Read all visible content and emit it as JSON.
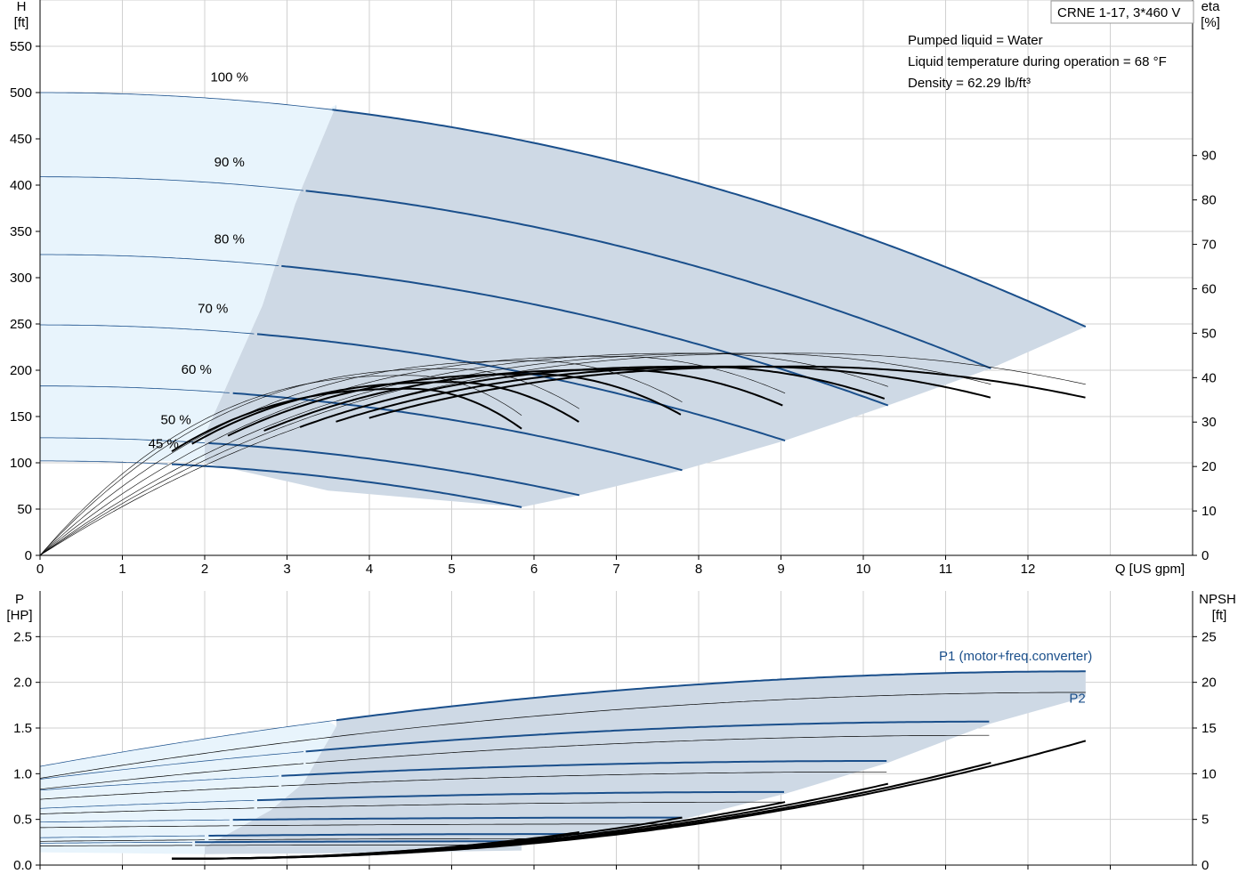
{
  "model_label": "CRNE 1-17, 3*460 V",
  "notes": [
    "Pumped liquid = Water",
    "Liquid temperature during operation = 68 °F",
    "Density = 62.29 lb/ft³"
  ],
  "colors": {
    "blue": "#1a4f8b",
    "light_zone": "#e8f4fc",
    "dark_zone": "#ced9e5",
    "grid": "#d0d0d0"
  },
  "chart_data": [
    {
      "type": "line",
      "name": "head-efficiency",
      "xlabel": "Q [US gpm]",
      "ylabel_top": "H",
      "ylabel_unit": "[ft]",
      "y2label_top": "eta",
      "y2label_unit": "[%]",
      "xlim": [
        0,
        14
      ],
      "ylim": [
        0,
        600
      ],
      "y2lim": [
        0,
        125
      ],
      "xticks": [
        0,
        1,
        2,
        3,
        4,
        5,
        6,
        7,
        8,
        9,
        10,
        11,
        12
      ],
      "yticks": [
        0,
        50,
        100,
        150,
        200,
        250,
        300,
        350,
        400,
        450,
        500,
        550
      ],
      "y2ticks": [
        0,
        10,
        20,
        30,
        40,
        50,
        60,
        70,
        80,
        90
      ],
      "grid": true,
      "speed_labels": [
        {
          "text": "100 %",
          "x": 2.3,
          "y": 512
        },
        {
          "text": "90 %",
          "x": 2.3,
          "y": 420
        },
        {
          "text": "80 %",
          "x": 2.3,
          "y": 337
        },
        {
          "text": "70 %",
          "x": 2.1,
          "y": 262
        },
        {
          "text": "60 %",
          "x": 1.9,
          "y": 196
        },
        {
          "text": "50 %",
          "x": 1.65,
          "y": 142
        },
        {
          "text": "45 %",
          "x": 1.5,
          "y": 116
        }
      ],
      "head_curves": [
        {
          "speed": 100,
          "shutoff": 500,
          "q_max": 12.7,
          "h_end": 247,
          "h_start": 500
        },
        {
          "speed": 90,
          "shutoff": 409,
          "q_max": 11.55,
          "h_end": 202
        },
        {
          "speed": 80,
          "shutoff": 325,
          "q_max": 10.3,
          "h_end": 162
        },
        {
          "speed": 70,
          "shutoff": 249,
          "q_max": 9.05,
          "h_end": 124
        },
        {
          "speed": 60,
          "shutoff": 183,
          "q_max": 7.8,
          "h_end": 92
        },
        {
          "speed": 50,
          "shutoff": 127,
          "q_max": 6.55,
          "h_end": 65
        },
        {
          "speed": 45,
          "shutoff": 102,
          "q_max": 5.85,
          "h_end": 52
        }
      ],
      "eff_curves": [
        {
          "speed": 100,
          "q_max": 12.7,
          "peak": 45.5,
          "q_peak": 9.2,
          "end": 38.5
        },
        {
          "speed": 90,
          "q_max": 11.55,
          "peak": 45.5,
          "q_peak": 8.6,
          "end": 38.5
        },
        {
          "speed": 80,
          "q_max": 10.3,
          "peak": 45.5,
          "q_peak": 8.0,
          "end": 38.0
        },
        {
          "speed": 70,
          "q_max": 9.05,
          "peak": 44.8,
          "q_peak": 7.0,
          "end": 36.5
        },
        {
          "speed": 60,
          "q_max": 7.8,
          "peak": 43.8,
          "q_peak": 6.0,
          "end": 34.5
        },
        {
          "speed": 50,
          "q_max": 6.55,
          "peak": 42.0,
          "q_peak": 5.0,
          "end": 33.0
        },
        {
          "speed": 45,
          "q_max": 5.85,
          "peak": 40.5,
          "q_peak": 4.5,
          "end": 31.5
        }
      ]
    },
    {
      "type": "line",
      "name": "power-npsh",
      "ylabel_top": "P",
      "ylabel_unit": "[HP]",
      "y2label_top": "NPSH",
      "y2label_unit": "[ft]",
      "xlim": [
        0,
        14
      ],
      "ylim": [
        0,
        2.5
      ],
      "y2lim": [
        0,
        25
      ],
      "yticks": [
        0.0,
        0.5,
        1.0,
        1.5,
        2.0,
        2.5
      ],
      "y2ticks": [
        0,
        5,
        10,
        15,
        20,
        25
      ],
      "grid": true,
      "annotations": [
        {
          "text": "P1 (motor+freq.converter)",
          "x": 11.85,
          "y": 2.24
        },
        {
          "text": "P2",
          "x": 12.6,
          "y": 1.78
        }
      ],
      "p1_curves": [
        {
          "speed": 100,
          "p0": 1.08,
          "q_max": 12.7,
          "p_end": 2.12
        },
        {
          "speed": 90,
          "p0": 0.94,
          "q_max": 11.55,
          "p_end": 1.57
        },
        {
          "speed": 80,
          "p0": 0.82,
          "q_max": 10.3,
          "p_end": 1.14
        },
        {
          "speed": 70,
          "p0": 0.62,
          "q_max": 9.05,
          "p_end": 0.8
        },
        {
          "speed": 60,
          "p0": 0.47,
          "q_max": 7.8,
          "p_end": 0.52
        },
        {
          "speed": 50,
          "p0": 0.3,
          "q_max": 6.55,
          "p_end": 0.34
        },
        {
          "speed": 45,
          "p0": 0.24,
          "q_max": 5.85,
          "p_end": 0.26
        }
      ],
      "p2_curves": [
        {
          "speed": 100,
          "p0": 0.95,
          "q_max": 12.7,
          "p_end": 1.89
        },
        {
          "speed": 90,
          "p0": 0.83,
          "q_max": 11.55,
          "p_end": 1.42
        },
        {
          "speed": 80,
          "p0": 0.72,
          "q_max": 10.3,
          "p_end": 1.02
        },
        {
          "speed": 70,
          "p0": 0.56,
          "q_max": 9.05,
          "p_end": 0.69
        },
        {
          "speed": 60,
          "p0": 0.41,
          "q_max": 7.8,
          "p_end": 0.45
        },
        {
          "speed": 50,
          "p0": 0.26,
          "q_max": 6.55,
          "p_end": 0.29
        },
        {
          "speed": 45,
          "p0": 0.21,
          "q_max": 5.85,
          "p_end": 0.22
        }
      ],
      "npsh_curves": [
        {
          "speed": 100,
          "q_max": 12.7,
          "npsh_end": 13.6,
          "q_start": 1.6
        },
        {
          "speed": 90,
          "q_max": 11.55,
          "npsh_end": 11.2,
          "q_start": 1.6
        },
        {
          "speed": 80,
          "q_max": 10.3,
          "npsh_end": 8.9,
          "q_start": 1.6
        },
        {
          "speed": 70,
          "q_max": 9.05,
          "npsh_end": 6.9,
          "q_start": 1.6
        },
        {
          "speed": 60,
          "q_max": 7.8,
          "npsh_end": 5.2,
          "q_start": 1.6
        },
        {
          "speed": 50,
          "q_max": 6.55,
          "npsh_end": 3.6,
          "q_start": 1.6
        },
        {
          "speed": 45,
          "q_max": 5.85,
          "npsh_end": 2.8,
          "q_start": 1.6
        }
      ]
    }
  ]
}
